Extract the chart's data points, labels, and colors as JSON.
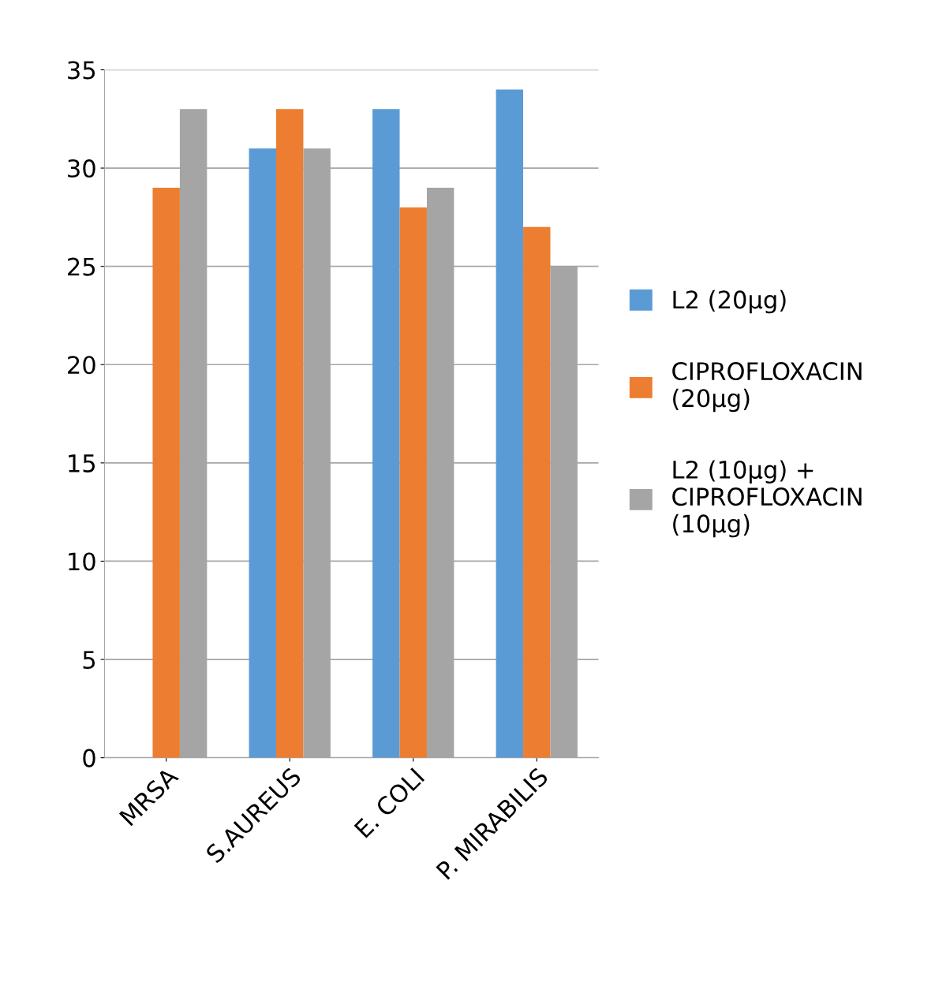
{
  "chart_data": {
    "type": "bar",
    "categories": [
      "MRSA",
      "S.AUREUS",
      "E. COLI",
      "P. MIRABILIS"
    ],
    "series": [
      {
        "name": "L2 (20µg)",
        "color": "#5b9bd5",
        "values": [
          0,
          31,
          33,
          34
        ]
      },
      {
        "name": "CIPROFLOXACIN (20µg)",
        "color": "#ed7d31",
        "values": [
          29,
          33,
          28,
          27
        ]
      },
      {
        "name": "L2 (10µg) + CIPROFLOXACIN (10µg)",
        "color": "#a5a5a5",
        "values": [
          33,
          31,
          29,
          25
        ]
      }
    ],
    "ylim": [
      0,
      35
    ],
    "yticks": [
      0,
      5,
      10,
      15,
      20,
      25,
      30,
      35
    ],
    "grid": "y",
    "legend": "right"
  }
}
